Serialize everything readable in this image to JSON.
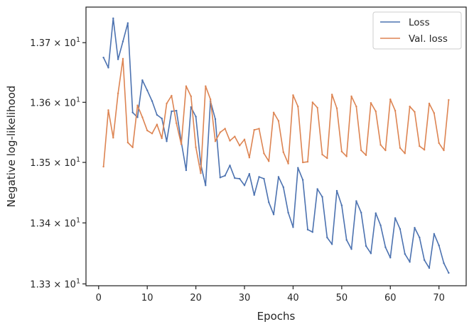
{
  "chart_data": {
    "type": "line",
    "xlabel": "Epochs",
    "ylabel": "Negative log-likelihood",
    "x": [
      1,
      2,
      3,
      4,
      5,
      6,
      7,
      8,
      9,
      10,
      11,
      12,
      13,
      14,
      15,
      16,
      17,
      18,
      19,
      20,
      21,
      22,
      23,
      24,
      25,
      26,
      27,
      28,
      29,
      30,
      31,
      32,
      33,
      34,
      35,
      36,
      37,
      38,
      39,
      40,
      41,
      42,
      43,
      44,
      45,
      46,
      47,
      48,
      49,
      50,
      51,
      52,
      53,
      54,
      55,
      56,
      57,
      58,
      59,
      60,
      61,
      62,
      63,
      64,
      65,
      66,
      67,
      68,
      69,
      70,
      71,
      72
    ],
    "series": [
      {
        "name": "Loss",
        "color": "#4c72b0",
        "values": [
          13.675,
          13.658,
          13.741,
          13.672,
          13.702,
          13.733,
          13.583,
          13.575,
          13.637,
          13.62,
          13.602,
          13.579,
          13.573,
          13.535,
          13.585,
          13.586,
          13.534,
          13.487,
          13.592,
          13.576,
          13.497,
          13.462,
          13.602,
          13.572,
          13.475,
          13.478,
          13.495,
          13.474,
          13.473,
          13.462,
          13.481,
          13.446,
          13.476,
          13.473,
          13.434,
          13.414,
          13.476,
          13.459,
          13.417,
          13.393,
          13.491,
          13.471,
          13.389,
          13.385,
          13.456,
          13.443,
          13.376,
          13.365,
          13.453,
          13.429,
          13.372,
          13.357,
          13.436,
          13.417,
          13.362,
          13.35,
          13.416,
          13.396,
          13.36,
          13.343,
          13.408,
          13.39,
          13.349,
          13.336,
          13.392,
          13.376,
          13.339,
          13.326,
          13.382,
          13.363,
          13.334,
          13.318
        ]
      },
      {
        "name": "Val. loss",
        "color": "#dd8452",
        "values": [
          13.493,
          13.587,
          13.541,
          13.615,
          13.673,
          13.533,
          13.525,
          13.595,
          13.575,
          13.553,
          13.548,
          13.563,
          13.54,
          13.598,
          13.611,
          13.565,
          13.53,
          13.627,
          13.61,
          13.525,
          13.482,
          13.627,
          13.605,
          13.535,
          13.55,
          13.556,
          13.536,
          13.543,
          13.528,
          13.538,
          13.508,
          13.554,
          13.556,
          13.515,
          13.502,
          13.583,
          13.569,
          13.517,
          13.498,
          13.612,
          13.593,
          13.5,
          13.501,
          13.6,
          13.591,
          13.513,
          13.507,
          13.613,
          13.59,
          13.518,
          13.51,
          13.61,
          13.593,
          13.52,
          13.512,
          13.599,
          13.585,
          13.529,
          13.52,
          13.605,
          13.586,
          13.524,
          13.515,
          13.593,
          13.584,
          13.527,
          13.521,
          13.598,
          13.582,
          13.532,
          13.52,
          13.604
        ]
      }
    ],
    "xlim": [
      -2.6,
      75.6
    ],
    "ylim": [
      13.297,
      13.76
    ],
    "y_scale": "log",
    "x_ticks": [
      0,
      10,
      20,
      30,
      40,
      50,
      60,
      70
    ],
    "y_ticks": [
      {
        "value": 13.3,
        "mantissa": "1.33",
        "exp": "1"
      },
      {
        "value": 13.4,
        "mantissa": "1.34",
        "exp": "1"
      },
      {
        "value": 13.5,
        "mantissa": "1.35",
        "exp": "1"
      },
      {
        "value": 13.6,
        "mantissa": "1.36",
        "exp": "1"
      },
      {
        "value": 13.7,
        "mantissa": "1.37",
        "exp": "1"
      }
    ],
    "y_tick_base": "10",
    "legend_position": "top-right",
    "grid": false
  }
}
